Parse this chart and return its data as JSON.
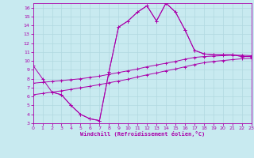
{
  "background_color": "#c8eaf0",
  "grid_color": "#b0d8e0",
  "line_color": "#aa00aa",
  "xlabel": "Windchill (Refroidissement éolien,°C)",
  "xlim": [
    0,
    23
  ],
  "ylim": [
    3,
    16.5
  ],
  "xticks": [
    0,
    1,
    2,
    3,
    4,
    5,
    6,
    7,
    8,
    9,
    10,
    11,
    12,
    13,
    14,
    15,
    16,
    17,
    18,
    19,
    20,
    21,
    22,
    23
  ],
  "yticks": [
    3,
    4,
    5,
    6,
    7,
    8,
    9,
    10,
    11,
    12,
    13,
    14,
    15,
    16
  ],
  "curve1_x": [
    0,
    1,
    2,
    3,
    4,
    5,
    6,
    7,
    8,
    9,
    10,
    11,
    12,
    13,
    14,
    15,
    16,
    17,
    18,
    19,
    20,
    21,
    22,
    23
  ],
  "curve1_y": [
    9.5,
    8.0,
    6.5,
    6.2,
    5.0,
    4.0,
    3.5,
    3.3,
    8.8,
    13.8,
    14.5,
    15.5,
    16.2,
    14.5,
    16.5,
    15.5,
    13.5,
    11.2,
    10.8,
    10.7,
    10.7,
    10.7,
    10.5,
    10.5
  ],
  "curve2_x": [
    0,
    1,
    2,
    3,
    4,
    5,
    6,
    7,
    8,
    9,
    10,
    11,
    12,
    13,
    14,
    15,
    16,
    17,
    18,
    19,
    20,
    21,
    22,
    23
  ],
  "curve2_y": [
    7.5,
    7.6,
    7.7,
    7.8,
    7.9,
    8.0,
    8.15,
    8.3,
    8.5,
    8.7,
    8.9,
    9.1,
    9.35,
    9.55,
    9.75,
    9.95,
    10.2,
    10.4,
    10.5,
    10.55,
    10.6,
    10.65,
    10.65,
    10.6
  ],
  "curve3_x": [
    0,
    1,
    2,
    3,
    4,
    5,
    6,
    7,
    8,
    9,
    10,
    11,
    12,
    13,
    14,
    15,
    16,
    17,
    18,
    19,
    20,
    21,
    22,
    23
  ],
  "curve3_y": [
    6.2,
    6.35,
    6.5,
    6.65,
    6.8,
    7.0,
    7.15,
    7.35,
    7.55,
    7.75,
    7.95,
    8.2,
    8.45,
    8.65,
    8.9,
    9.1,
    9.35,
    9.6,
    9.8,
    9.95,
    10.05,
    10.15,
    10.25,
    10.3
  ],
  "curve4_x": [
    2,
    3,
    4,
    5,
    6,
    7,
    8,
    9,
    10,
    11,
    12,
    13,
    14,
    15,
    16,
    17,
    18,
    19,
    20,
    21,
    22,
    23
  ],
  "curve4_y": [
    6.5,
    6.2,
    5.0,
    4.0,
    3.5,
    3.3,
    8.8,
    13.8,
    14.5,
    15.5,
    16.2,
    14.5,
    16.5,
    15.5,
    13.5,
    11.2,
    10.8,
    10.7,
    10.7,
    10.7,
    10.5,
    10.5
  ]
}
